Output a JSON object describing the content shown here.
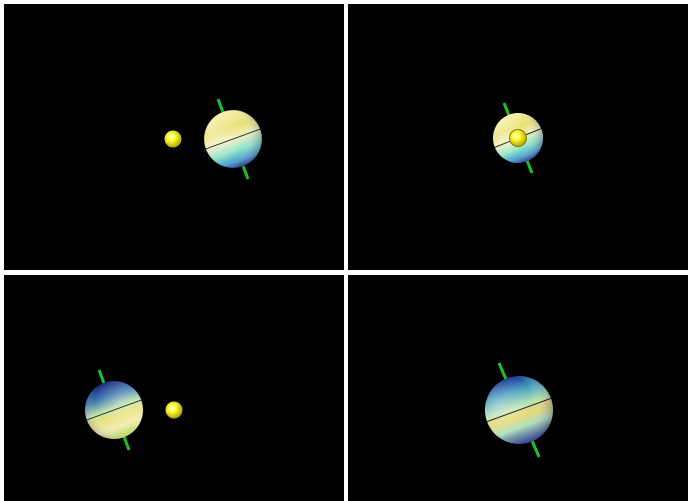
{
  "colors": {
    "background": "#000000",
    "divider": "#ffffff",
    "sun": "#ffff00",
    "axis": "#1fbf2a",
    "planet_light": "#f5f0a0",
    "planet_mid": "#7fdfc4",
    "planet_dark": "#1a2a8a",
    "equator": "#2b2b2b"
  },
  "viewports": [
    {
      "name": "top-left",
      "icon": "sun-and-tilted-planet"
    },
    {
      "name": "top-right",
      "icon": "sun-in-front-of-planet"
    },
    {
      "name": "bottom-left",
      "icon": "planet-and-sun"
    },
    {
      "name": "bottom-right",
      "icon": "tilted-planet"
    }
  ]
}
